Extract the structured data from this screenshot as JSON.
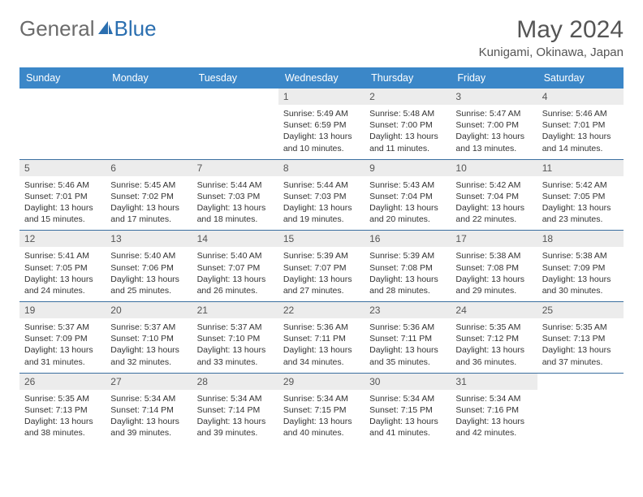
{
  "brand": {
    "part1": "General",
    "part2": "Blue"
  },
  "title": "May 2024",
  "location": "Kunigami, Okinawa, Japan",
  "colors": {
    "header_bg": "#3b87c8",
    "row_border": "#3b6fa0",
    "daynum_bg": "#ececec"
  },
  "weekdays": [
    "Sunday",
    "Monday",
    "Tuesday",
    "Wednesday",
    "Thursday",
    "Friday",
    "Saturday"
  ],
  "weeks": [
    [
      {
        "n": "",
        "sr": "",
        "ss": "",
        "dl": ""
      },
      {
        "n": "",
        "sr": "",
        "ss": "",
        "dl": ""
      },
      {
        "n": "",
        "sr": "",
        "ss": "",
        "dl": ""
      },
      {
        "n": "1",
        "sr": "Sunrise: 5:49 AM",
        "ss": "Sunset: 6:59 PM",
        "dl": "Daylight: 13 hours and 10 minutes."
      },
      {
        "n": "2",
        "sr": "Sunrise: 5:48 AM",
        "ss": "Sunset: 7:00 PM",
        "dl": "Daylight: 13 hours and 11 minutes."
      },
      {
        "n": "3",
        "sr": "Sunrise: 5:47 AM",
        "ss": "Sunset: 7:00 PM",
        "dl": "Daylight: 13 hours and 13 minutes."
      },
      {
        "n": "4",
        "sr": "Sunrise: 5:46 AM",
        "ss": "Sunset: 7:01 PM",
        "dl": "Daylight: 13 hours and 14 minutes."
      }
    ],
    [
      {
        "n": "5",
        "sr": "Sunrise: 5:46 AM",
        "ss": "Sunset: 7:01 PM",
        "dl": "Daylight: 13 hours and 15 minutes."
      },
      {
        "n": "6",
        "sr": "Sunrise: 5:45 AM",
        "ss": "Sunset: 7:02 PM",
        "dl": "Daylight: 13 hours and 17 minutes."
      },
      {
        "n": "7",
        "sr": "Sunrise: 5:44 AM",
        "ss": "Sunset: 7:03 PM",
        "dl": "Daylight: 13 hours and 18 minutes."
      },
      {
        "n": "8",
        "sr": "Sunrise: 5:44 AM",
        "ss": "Sunset: 7:03 PM",
        "dl": "Daylight: 13 hours and 19 minutes."
      },
      {
        "n": "9",
        "sr": "Sunrise: 5:43 AM",
        "ss": "Sunset: 7:04 PM",
        "dl": "Daylight: 13 hours and 20 minutes."
      },
      {
        "n": "10",
        "sr": "Sunrise: 5:42 AM",
        "ss": "Sunset: 7:04 PM",
        "dl": "Daylight: 13 hours and 22 minutes."
      },
      {
        "n": "11",
        "sr": "Sunrise: 5:42 AM",
        "ss": "Sunset: 7:05 PM",
        "dl": "Daylight: 13 hours and 23 minutes."
      }
    ],
    [
      {
        "n": "12",
        "sr": "Sunrise: 5:41 AM",
        "ss": "Sunset: 7:05 PM",
        "dl": "Daylight: 13 hours and 24 minutes."
      },
      {
        "n": "13",
        "sr": "Sunrise: 5:40 AM",
        "ss": "Sunset: 7:06 PM",
        "dl": "Daylight: 13 hours and 25 minutes."
      },
      {
        "n": "14",
        "sr": "Sunrise: 5:40 AM",
        "ss": "Sunset: 7:07 PM",
        "dl": "Daylight: 13 hours and 26 minutes."
      },
      {
        "n": "15",
        "sr": "Sunrise: 5:39 AM",
        "ss": "Sunset: 7:07 PM",
        "dl": "Daylight: 13 hours and 27 minutes."
      },
      {
        "n": "16",
        "sr": "Sunrise: 5:39 AM",
        "ss": "Sunset: 7:08 PM",
        "dl": "Daylight: 13 hours and 28 minutes."
      },
      {
        "n": "17",
        "sr": "Sunrise: 5:38 AM",
        "ss": "Sunset: 7:08 PM",
        "dl": "Daylight: 13 hours and 29 minutes."
      },
      {
        "n": "18",
        "sr": "Sunrise: 5:38 AM",
        "ss": "Sunset: 7:09 PM",
        "dl": "Daylight: 13 hours and 30 minutes."
      }
    ],
    [
      {
        "n": "19",
        "sr": "Sunrise: 5:37 AM",
        "ss": "Sunset: 7:09 PM",
        "dl": "Daylight: 13 hours and 31 minutes."
      },
      {
        "n": "20",
        "sr": "Sunrise: 5:37 AM",
        "ss": "Sunset: 7:10 PM",
        "dl": "Daylight: 13 hours and 32 minutes."
      },
      {
        "n": "21",
        "sr": "Sunrise: 5:37 AM",
        "ss": "Sunset: 7:10 PM",
        "dl": "Daylight: 13 hours and 33 minutes."
      },
      {
        "n": "22",
        "sr": "Sunrise: 5:36 AM",
        "ss": "Sunset: 7:11 PM",
        "dl": "Daylight: 13 hours and 34 minutes."
      },
      {
        "n": "23",
        "sr": "Sunrise: 5:36 AM",
        "ss": "Sunset: 7:11 PM",
        "dl": "Daylight: 13 hours and 35 minutes."
      },
      {
        "n": "24",
        "sr": "Sunrise: 5:35 AM",
        "ss": "Sunset: 7:12 PM",
        "dl": "Daylight: 13 hours and 36 minutes."
      },
      {
        "n": "25",
        "sr": "Sunrise: 5:35 AM",
        "ss": "Sunset: 7:13 PM",
        "dl": "Daylight: 13 hours and 37 minutes."
      }
    ],
    [
      {
        "n": "26",
        "sr": "Sunrise: 5:35 AM",
        "ss": "Sunset: 7:13 PM",
        "dl": "Daylight: 13 hours and 38 minutes."
      },
      {
        "n": "27",
        "sr": "Sunrise: 5:34 AM",
        "ss": "Sunset: 7:14 PM",
        "dl": "Daylight: 13 hours and 39 minutes."
      },
      {
        "n": "28",
        "sr": "Sunrise: 5:34 AM",
        "ss": "Sunset: 7:14 PM",
        "dl": "Daylight: 13 hours and 39 minutes."
      },
      {
        "n": "29",
        "sr": "Sunrise: 5:34 AM",
        "ss": "Sunset: 7:15 PM",
        "dl": "Daylight: 13 hours and 40 minutes."
      },
      {
        "n": "30",
        "sr": "Sunrise: 5:34 AM",
        "ss": "Sunset: 7:15 PM",
        "dl": "Daylight: 13 hours and 41 minutes."
      },
      {
        "n": "31",
        "sr": "Sunrise: 5:34 AM",
        "ss": "Sunset: 7:16 PM",
        "dl": "Daylight: 13 hours and 42 minutes."
      },
      {
        "n": "",
        "sr": "",
        "ss": "",
        "dl": ""
      }
    ]
  ]
}
